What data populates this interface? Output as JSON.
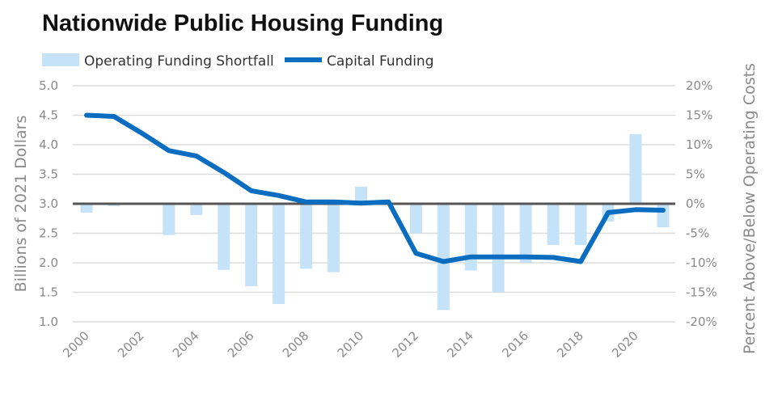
{
  "chart_data": {
    "type": "bar+line",
    "title": "Nationwide Public Housing Funding",
    "ylabel_left": "Billions of 2021 Dollars",
    "ylabel_right": "Percent Above/Below Operating Costs",
    "ylim_left": [
      1.0,
      5.0
    ],
    "ylim_right": [
      -20,
      20
    ],
    "yticks_left": [
      "1.0",
      "1.5",
      "2.0",
      "2.5",
      "3.0",
      "3.5",
      "4.0",
      "4.5",
      "5.0"
    ],
    "yticks_right": [
      "-20%",
      "-15%",
      "-10%",
      "-5%",
      "0%",
      "5%",
      "10%",
      "15%",
      "20%"
    ],
    "xticks": [
      "2000",
      "2002",
      "2004",
      "2006",
      "2008",
      "2010",
      "2012",
      "2014",
      "2016",
      "2018",
      "2020"
    ],
    "grid": true,
    "legend_placement": "top-left",
    "x": [
      2000,
      2001,
      2002,
      2003,
      2004,
      2005,
      2006,
      2007,
      2008,
      2009,
      2010,
      2011,
      2012,
      2013,
      2014,
      2015,
      2016,
      2017,
      2018,
      2019,
      2020,
      2021
    ],
    "series": [
      {
        "name": "Operating Funding Shortfall",
        "type": "bar",
        "axis": "right",
        "unit": "%",
        "color": "#c5e3f8",
        "values": [
          -1.5,
          -0.4,
          null,
          -5.3,
          -1.9,
          -11.2,
          -14,
          -17,
          -11,
          -11.6,
          2.9,
          null,
          -5,
          -18,
          -11.3,
          -15,
          -10,
          -7,
          -7,
          -3,
          11.8,
          -4
        ]
      },
      {
        "name": "Capital Funding",
        "type": "line",
        "axis": "left",
        "unit": "billions",
        "color": "#0b6dbf",
        "values": [
          4.5,
          4.48,
          4.2,
          3.9,
          3.81,
          3.53,
          3.22,
          3.14,
          3.03,
          3.03,
          3.01,
          3.03,
          2.16,
          2.02,
          2.1,
          2.1,
          2.1,
          2.09,
          2.02,
          2.85,
          2.9,
          2.89
        ]
      }
    ],
    "zero_line_color": "#555555"
  }
}
